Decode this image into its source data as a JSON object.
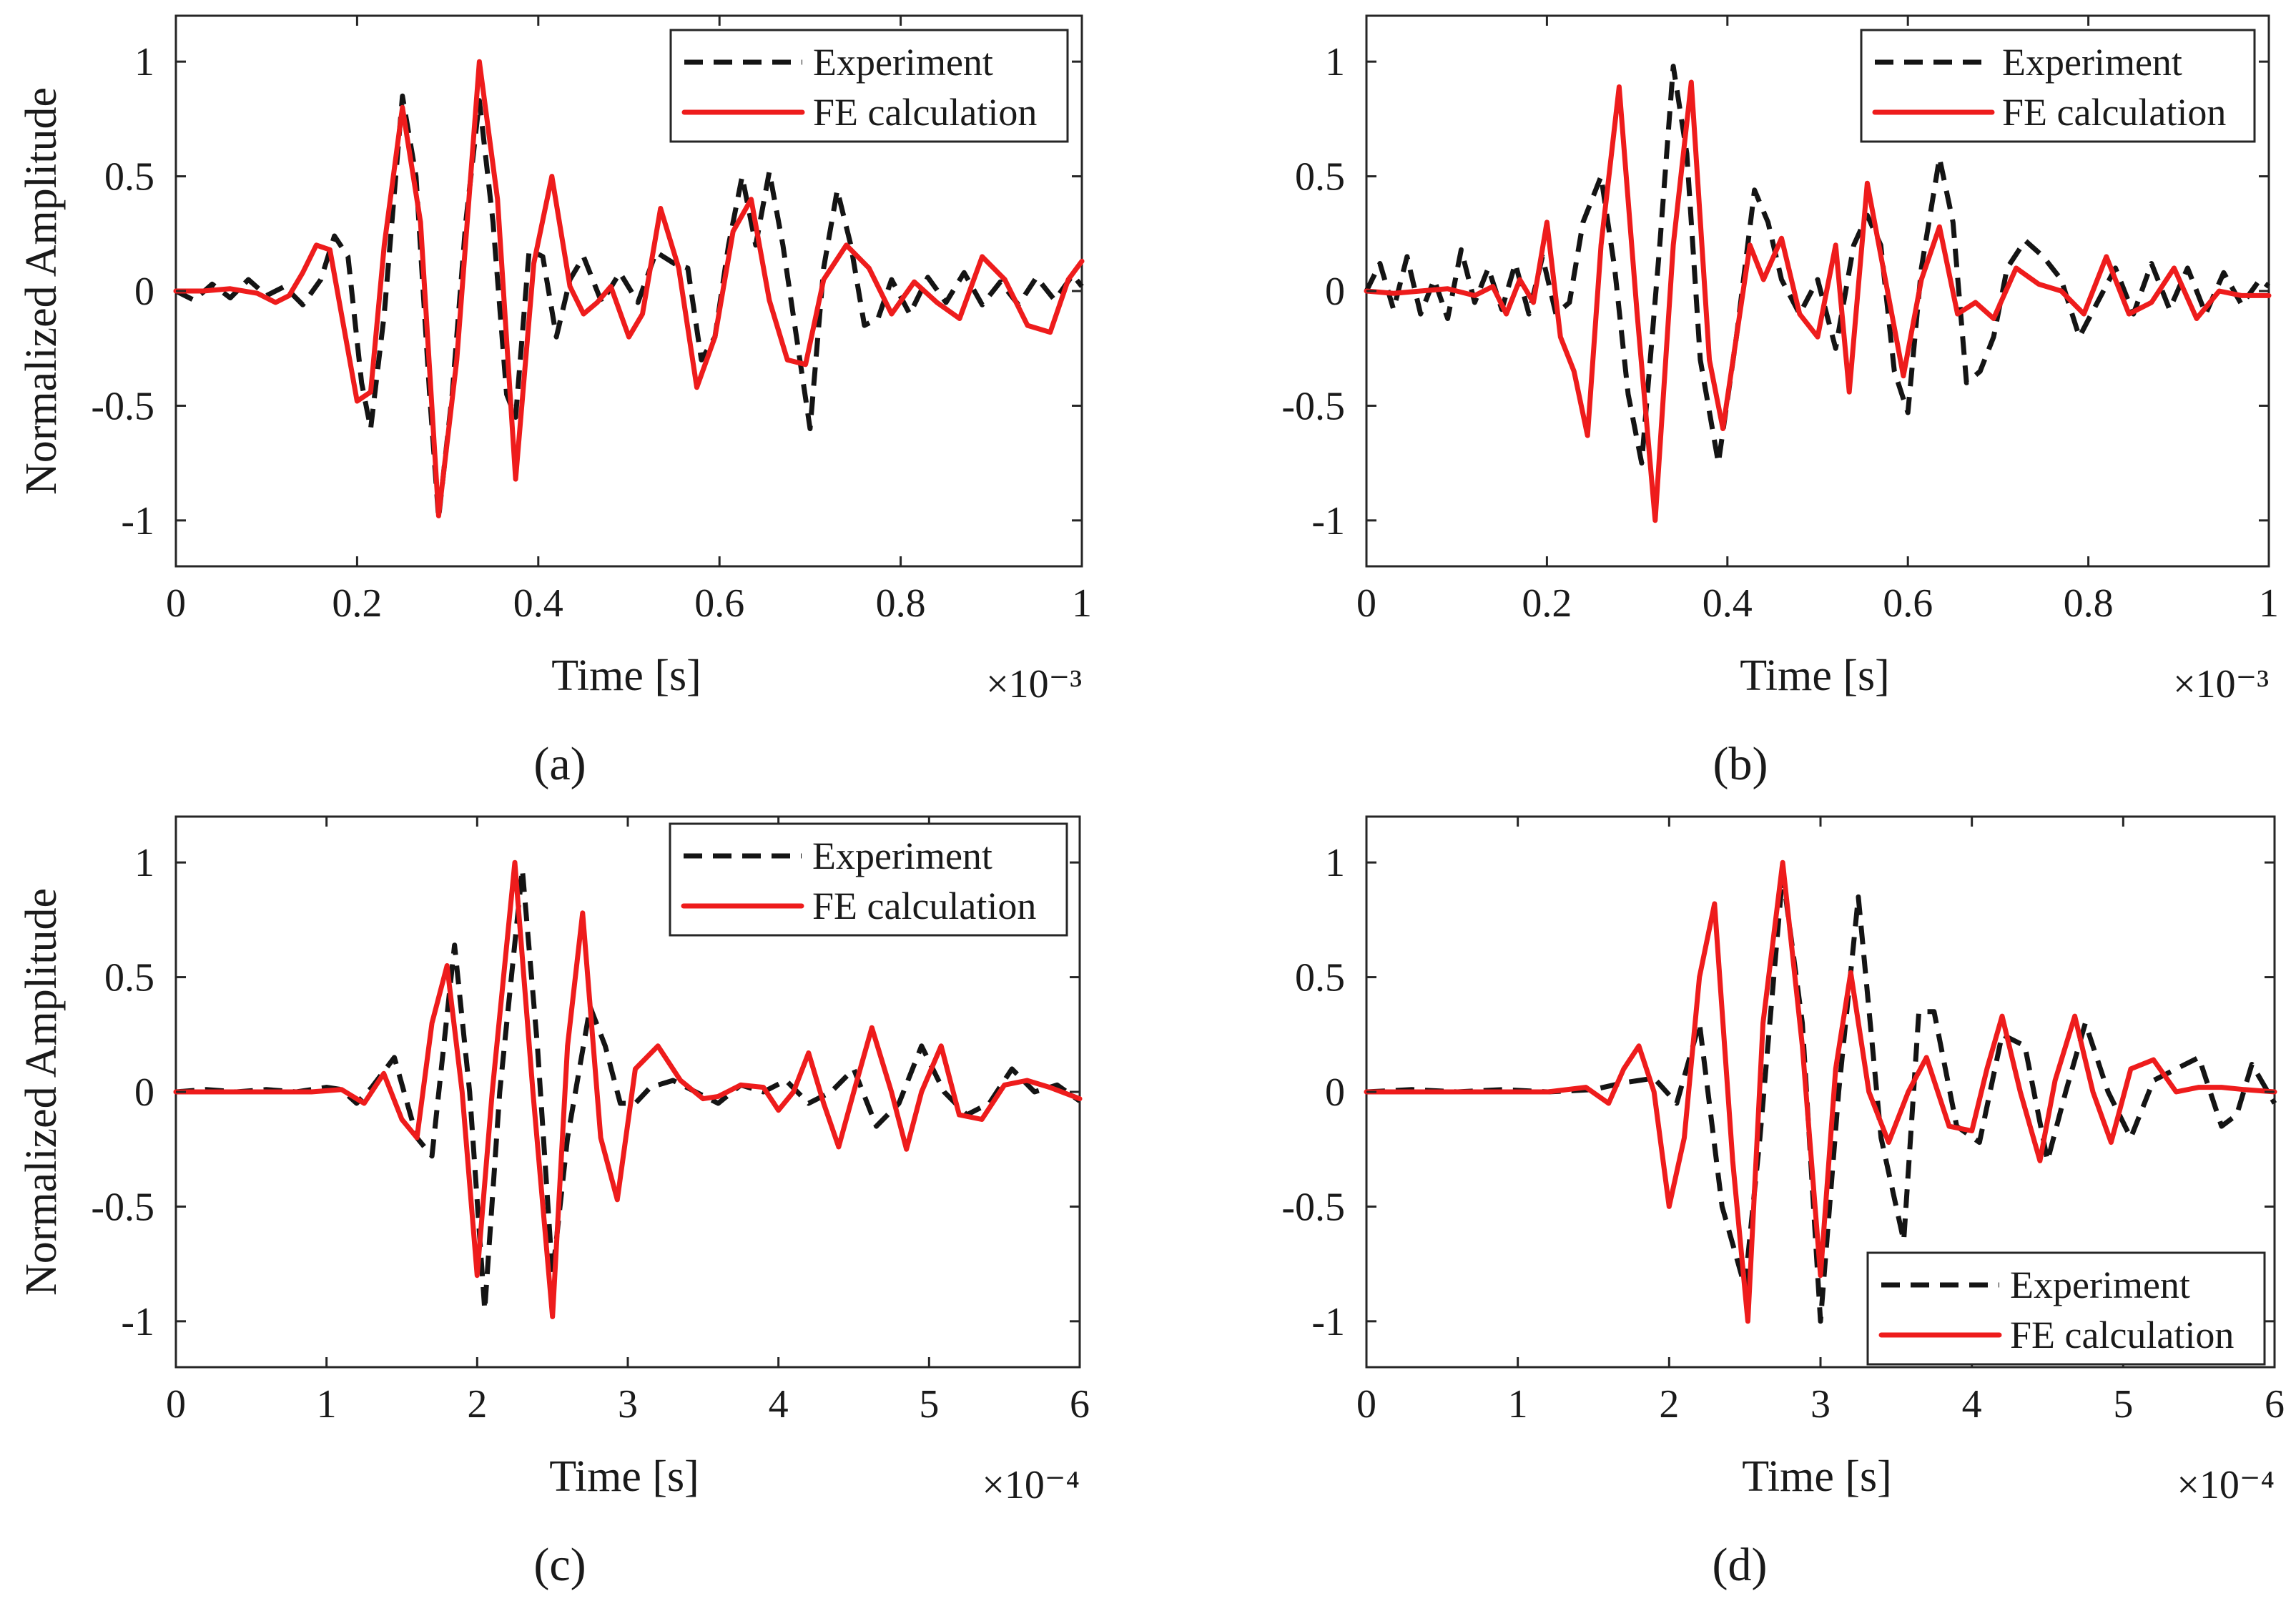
{
  "figure": {
    "background": "#ffffff",
    "series_colors": {
      "experiment": "#141414",
      "fe": "#ee1c1c"
    }
  },
  "chart_data": [
    {
      "type": "line",
      "panel_label": "(a)",
      "title": "",
      "xlabel": "Time [s]",
      "ylabel": "Normalized Amplitude",
      "x_exponent": "×10⁻³",
      "xlim": [
        0,
        1
      ],
      "ylim": [
        -1.2,
        1.2
      ],
      "xticks": [
        0,
        0.2,
        0.4,
        0.6,
        0.8,
        1
      ],
      "xtick_labels": [
        "0",
        "0.2",
        "0.4",
        "0.6",
        "0.8",
        "1"
      ],
      "yticks": [
        -1,
        -0.5,
        0,
        0.5,
        1
      ],
      "ytick_labels": [
        "-1",
        "-0.5",
        "0",
        "0.5",
        "1"
      ],
      "legend_position": "top-right",
      "series": [
        {
          "name": "Experiment",
          "style": "dashed",
          "x": [
            0,
            0.02,
            0.04,
            0.06,
            0.08,
            0.1,
            0.12,
            0.14,
            0.16,
            0.175,
            0.19,
            0.205,
            0.215,
            0.23,
            0.25,
            0.265,
            0.28,
            0.29,
            0.305,
            0.32,
            0.335,
            0.35,
            0.365,
            0.375,
            0.39,
            0.405,
            0.42,
            0.435,
            0.45,
            0.47,
            0.49,
            0.51,
            0.53,
            0.55,
            0.565,
            0.58,
            0.595,
            0.61,
            0.625,
            0.64,
            0.655,
            0.67,
            0.685,
            0.7,
            0.715,
            0.73,
            0.745,
            0.76,
            0.775,
            0.79,
            0.81,
            0.83,
            0.85,
            0.87,
            0.89,
            0.91,
            0.93,
            0.95,
            0.97,
            0.99,
            1.0
          ],
          "y": [
            0,
            -0.04,
            0.03,
            -0.03,
            0.05,
            -0.02,
            0.02,
            -0.06,
            0.05,
            0.24,
            0.15,
            -0.4,
            -0.6,
            -0.1,
            0.85,
            0.5,
            -0.45,
            -0.99,
            -0.45,
            0.3,
            0.83,
            0.3,
            -0.45,
            -0.55,
            0.18,
            0.15,
            -0.2,
            0.05,
            0.15,
            -0.05,
            0.08,
            -0.05,
            0.17,
            0.12,
            0.1,
            -0.3,
            -0.2,
            0.2,
            0.5,
            0.2,
            0.52,
            0.2,
            -0.2,
            -0.6,
            0.1,
            0.44,
            0.2,
            -0.15,
            -0.12,
            0.05,
            -0.1,
            0.06,
            -0.05,
            0.08,
            -0.06,
            0.04,
            -0.06,
            0.06,
            -0.04,
            0.07,
            0.02
          ]
        },
        {
          "name": "FE calculation",
          "style": "solid",
          "x": [
            0,
            0.03,
            0.06,
            0.09,
            0.11,
            0.125,
            0.14,
            0.155,
            0.17,
            0.185,
            0.2,
            0.215,
            0.23,
            0.25,
            0.27,
            0.29,
            0.31,
            0.335,
            0.355,
            0.375,
            0.395,
            0.415,
            0.435,
            0.45,
            0.465,
            0.48,
            0.5,
            0.515,
            0.535,
            0.555,
            0.575,
            0.595,
            0.615,
            0.635,
            0.655,
            0.675,
            0.695,
            0.715,
            0.74,
            0.765,
            0.79,
            0.815,
            0.84,
            0.865,
            0.89,
            0.915,
            0.94,
            0.965,
            0.985,
            1.0
          ],
          "y": [
            0,
            0,
            0.01,
            -0.01,
            -0.05,
            -0.02,
            0.08,
            0.2,
            0.18,
            -0.15,
            -0.48,
            -0.44,
            0.2,
            0.8,
            0.3,
            -0.98,
            -0.3,
            1.0,
            0.4,
            -0.82,
            0.12,
            0.5,
            0.02,
            -0.1,
            -0.05,
            0.02,
            -0.2,
            -0.1,
            0.36,
            0.1,
            -0.42,
            -0.2,
            0.26,
            0.4,
            -0.04,
            -0.3,
            -0.32,
            0.05,
            0.2,
            0.1,
            -0.1,
            0.04,
            -0.05,
            -0.12,
            0.15,
            0.05,
            -0.15,
            -0.18,
            0.05,
            0.13
          ]
        }
      ]
    },
    {
      "type": "line",
      "panel_label": "(b)",
      "title": "",
      "xlabel": "Time [s]",
      "ylabel": "",
      "x_exponent": "×10⁻³",
      "xlim": [
        0,
        1
      ],
      "ylim": [
        -1.2,
        1.2
      ],
      "xticks": [
        0,
        0.2,
        0.4,
        0.6,
        0.8,
        1
      ],
      "xtick_labels": [
        "0",
        "0.2",
        "0.4",
        "0.6",
        "0.8",
        "1"
      ],
      "yticks": [
        -1,
        -0.5,
        0,
        0.5,
        1
      ],
      "ytick_labels": [
        "-1",
        "-0.5",
        "0",
        "0.5",
        "1"
      ],
      "legend_position": "top-right",
      "series": [
        {
          "name": "Experiment",
          "style": "dashed",
          "x": [
            0,
            0.015,
            0.03,
            0.045,
            0.06,
            0.075,
            0.09,
            0.105,
            0.12,
            0.135,
            0.15,
            0.165,
            0.18,
            0.195,
            0.21,
            0.225,
            0.24,
            0.26,
            0.275,
            0.29,
            0.305,
            0.325,
            0.34,
            0.355,
            0.37,
            0.39,
            0.41,
            0.43,
            0.445,
            0.46,
            0.48,
            0.5,
            0.52,
            0.54,
            0.555,
            0.57,
            0.585,
            0.6,
            0.615,
            0.635,
            0.65,
            0.665,
            0.68,
            0.695,
            0.71,
            0.73,
            0.75,
            0.77,
            0.79,
            0.81,
            0.83,
            0.85,
            0.87,
            0.89,
            0.91,
            0.93,
            0.95,
            0.97,
            0.99,
            1.0
          ],
          "y": [
            0,
            0.12,
            -0.08,
            0.15,
            -0.1,
            0.05,
            -0.12,
            0.18,
            -0.05,
            0.1,
            -0.08,
            0.12,
            -0.1,
            0.15,
            -0.1,
            -0.05,
            0.3,
            0.5,
            0.1,
            -0.45,
            -0.75,
            0.2,
            0.98,
            0.6,
            -0.3,
            -0.75,
            -0.2,
            0.44,
            0.3,
            0.05,
            -0.1,
            0.05,
            -0.25,
            0.2,
            0.33,
            0.2,
            -0.35,
            -0.53,
            0.1,
            0.58,
            0.3,
            -0.4,
            -0.35,
            -0.2,
            0.1,
            0.22,
            0.15,
            0.05,
            -0.2,
            -0.05,
            0.1,
            -0.1,
            0.12,
            -0.08,
            0.1,
            -0.1,
            0.08,
            -0.06,
            0.05,
            0.02
          ]
        },
        {
          "name": "FE calculation",
          "style": "solid",
          "x": [
            0,
            0.03,
            0.06,
            0.09,
            0.12,
            0.14,
            0.155,
            0.17,
            0.185,
            0.2,
            0.215,
            0.23,
            0.245,
            0.26,
            0.28,
            0.3,
            0.32,
            0.34,
            0.36,
            0.38,
            0.395,
            0.41,
            0.425,
            0.44,
            0.46,
            0.48,
            0.5,
            0.52,
            0.535,
            0.555,
            0.575,
            0.595,
            0.615,
            0.635,
            0.655,
            0.675,
            0.695,
            0.72,
            0.745,
            0.77,
            0.795,
            0.82,
            0.845,
            0.87,
            0.895,
            0.92,
            0.945,
            0.97,
            1.0
          ],
          "y": [
            0,
            -0.01,
            0,
            0.01,
            -0.02,
            0.02,
            -0.1,
            0.05,
            -0.05,
            0.3,
            -0.2,
            -0.35,
            -0.63,
            0.2,
            0.89,
            -0.1,
            -1.0,
            0.2,
            0.91,
            -0.3,
            -0.6,
            -0.2,
            0.2,
            0.05,
            0.23,
            -0.1,
            -0.2,
            0.2,
            -0.44,
            0.47,
            0.05,
            -0.37,
            0.05,
            0.28,
            -0.1,
            -0.05,
            -0.12,
            0.1,
            0.03,
            0.0,
            -0.1,
            0.15,
            -0.1,
            -0.05,
            0.1,
            -0.12,
            0.0,
            -0.02,
            -0.02
          ]
        }
      ]
    },
    {
      "type": "line",
      "panel_label": "(c)",
      "title": "",
      "xlabel": "Time [s]",
      "ylabel": "Normalized Amplitude",
      "x_exponent": "×10⁻⁴",
      "xlim": [
        0,
        6
      ],
      "ylim": [
        -1.2,
        1.2
      ],
      "xticks": [
        0,
        1,
        2,
        3,
        4,
        5,
        6
      ],
      "xtick_labels": [
        "0",
        "1",
        "2",
        "3",
        "4",
        "5",
        "6"
      ],
      "yticks": [
        -1,
        -0.5,
        0,
        0.5,
        1
      ],
      "ytick_labels": [
        "-1",
        "-0.5",
        "0",
        "0.5",
        "1"
      ],
      "legend_position": "top-right",
      "series": [
        {
          "name": "Experiment",
          "style": "dashed",
          "x": [
            0,
            0.2,
            0.4,
            0.6,
            0.8,
            1.0,
            1.1,
            1.2,
            1.3,
            1.45,
            1.6,
            1.7,
            1.85,
            1.95,
            2.05,
            2.15,
            2.3,
            2.4,
            2.5,
            2.6,
            2.75,
            2.85,
            2.95,
            3.05,
            3.15,
            3.3,
            3.45,
            3.6,
            3.75,
            3.9,
            4.05,
            4.2,
            4.35,
            4.5,
            4.65,
            4.8,
            4.95,
            5.1,
            5.25,
            5.4,
            5.55,
            5.7,
            5.85,
            6.0
          ],
          "y": [
            0,
            0.01,
            0,
            0.01,
            0,
            0.02,
            0.01,
            -0.05,
            0.02,
            0.15,
            -0.2,
            -0.28,
            0.64,
            0.0,
            -0.95,
            0.0,
            0.97,
            0.2,
            -0.8,
            -0.2,
            0.37,
            0.2,
            -0.05,
            -0.05,
            0.02,
            0.05,
            0.0,
            -0.05,
            0.03,
            0.0,
            0.05,
            -0.05,
            0.0,
            0.1,
            -0.15,
            -0.05,
            0.2,
            0.0,
            -0.1,
            -0.05,
            0.1,
            0.0,
            0.03,
            -0.04
          ]
        },
        {
          "name": "FE calculation",
          "style": "solid",
          "x": [
            0,
            0.3,
            0.6,
            0.9,
            1.1,
            1.25,
            1.38,
            1.5,
            1.6,
            1.7,
            1.8,
            1.9,
            2.0,
            2.1,
            2.25,
            2.37,
            2.5,
            2.6,
            2.7,
            2.82,
            2.93,
            3.05,
            3.2,
            3.35,
            3.5,
            3.6,
            3.75,
            3.9,
            4.0,
            4.1,
            4.2,
            4.3,
            4.4,
            4.5,
            4.62,
            4.75,
            4.85,
            4.95,
            5.08,
            5.2,
            5.35,
            5.5,
            5.65,
            5.8,
            6.0
          ],
          "y": [
            0,
            0,
            0,
            0,
            0.01,
            -0.05,
            0.08,
            -0.12,
            -0.2,
            0.3,
            0.55,
            0.0,
            -0.8,
            0.0,
            1.0,
            0.0,
            -0.98,
            0.2,
            0.78,
            -0.2,
            -0.47,
            0.1,
            0.2,
            0.05,
            -0.03,
            -0.02,
            0.03,
            0.02,
            -0.08,
            0.0,
            0.17,
            -0.05,
            -0.24,
            0.0,
            0.28,
            0.0,
            -0.25,
            0.0,
            0.2,
            -0.1,
            -0.12,
            0.03,
            0.05,
            0.02,
            -0.03
          ]
        }
      ]
    },
    {
      "type": "line",
      "panel_label": "(d)",
      "title": "",
      "xlabel": "Time [s]",
      "ylabel": "",
      "x_exponent": "×10⁻⁴",
      "xlim": [
        0,
        6
      ],
      "ylim": [
        -1.2,
        1.2
      ],
      "xticks": [
        0,
        1,
        2,
        3,
        4,
        5,
        6
      ],
      "xtick_labels": [
        "0",
        "1",
        "2",
        "3",
        "4",
        "5",
        "6"
      ],
      "yticks": [
        -1,
        -0.5,
        0,
        0.5,
        1
      ],
      "ytick_labels": [
        "-1",
        "-0.5",
        "0",
        "0.5",
        "1"
      ],
      "legend_position": "bottom-right",
      "series": [
        {
          "name": "Experiment",
          "style": "dashed",
          "x": [
            0,
            0.3,
            0.6,
            0.9,
            1.2,
            1.5,
            1.7,
            1.9,
            2.05,
            2.2,
            2.35,
            2.5,
            2.6,
            2.75,
            2.88,
            3.0,
            3.12,
            3.25,
            3.4,
            3.55,
            3.65,
            3.75,
            3.9,
            4.05,
            4.2,
            4.35,
            4.5,
            4.62,
            4.75,
            4.9,
            5.05,
            5.2,
            5.35,
            5.5,
            5.65,
            5.75,
            5.85,
            6.0
          ],
          "y": [
            0,
            0.01,
            0.0,
            0.01,
            0,
            0.01,
            0.04,
            0.06,
            -0.05,
            0.3,
            -0.5,
            -0.85,
            -0.2,
            0.95,
            0.3,
            -1.0,
            0.0,
            0.85,
            -0.2,
            -0.65,
            0.35,
            0.35,
            -0.15,
            -0.22,
            0.25,
            0.2,
            -0.3,
            0.0,
            0.3,
            0.0,
            -0.2,
            0.05,
            0.1,
            0.15,
            -0.15,
            -0.1,
            0.12,
            -0.05
          ]
        },
        {
          "name": "FE calculation",
          "style": "solid",
          "x": [
            0,
            0.3,
            0.6,
            0.9,
            1.2,
            1.45,
            1.6,
            1.7,
            1.8,
            1.9,
            2.0,
            2.1,
            2.2,
            2.3,
            2.42,
            2.52,
            2.62,
            2.75,
            2.88,
            3.0,
            3.1,
            3.2,
            3.32,
            3.45,
            3.58,
            3.7,
            3.85,
            4.0,
            4.1,
            4.2,
            4.32,
            4.45,
            4.55,
            4.68,
            4.8,
            4.92,
            5.05,
            5.2,
            5.35,
            5.5,
            5.65,
            5.8,
            6.0
          ],
          "y": [
            0,
            0,
            0,
            0,
            0.0,
            0.02,
            -0.05,
            0.1,
            0.2,
            0.0,
            -0.5,
            -0.2,
            0.5,
            0.82,
            -0.3,
            -1.0,
            0.3,
            1.0,
            0.2,
            -0.8,
            0.1,
            0.52,
            0.0,
            -0.22,
            0.0,
            0.15,
            -0.15,
            -0.17,
            0.1,
            0.33,
            0.0,
            -0.3,
            0.05,
            0.33,
            0.0,
            -0.22,
            0.1,
            0.14,
            0.0,
            0.02,
            0.02,
            0.01,
            0.0
          ]
        }
      ]
    }
  ]
}
